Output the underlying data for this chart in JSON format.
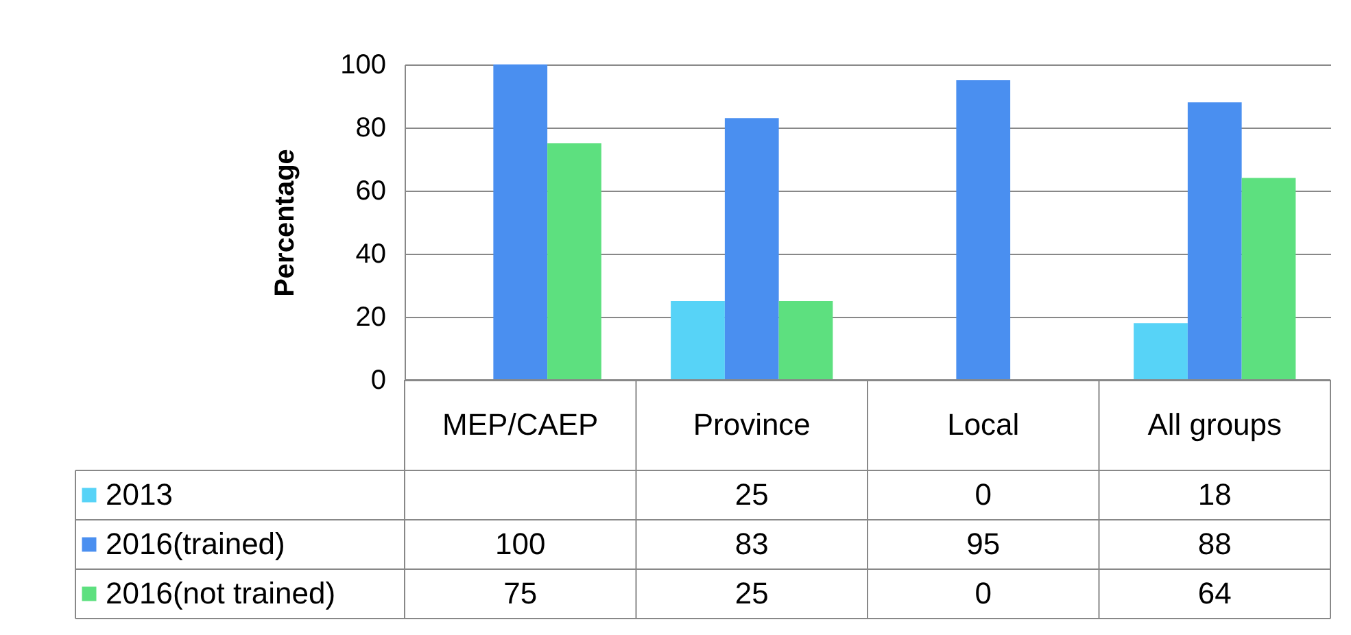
{
  "chart_data": {
    "type": "bar",
    "ylabel": "Percentage",
    "categories": [
      "MEP/CAEP",
      "Province",
      "Local",
      "All groups"
    ],
    "series": [
      {
        "name": "2013",
        "color": "#57d3f7",
        "values": [
          null,
          25,
          0,
          18
        ]
      },
      {
        "name": "2016(trained)",
        "color": "#4a8ff0",
        "values": [
          100,
          83,
          95,
          88
        ]
      },
      {
        "name": "2016(not trained)",
        "color": "#5de07f",
        "values": [
          75,
          25,
          0,
          64
        ]
      }
    ],
    "ylim": [
      0,
      100
    ],
    "yticks": [
      0,
      20,
      40,
      60,
      80,
      100
    ],
    "grid": "y",
    "legend": "bottom",
    "data_labels": true
  }
}
